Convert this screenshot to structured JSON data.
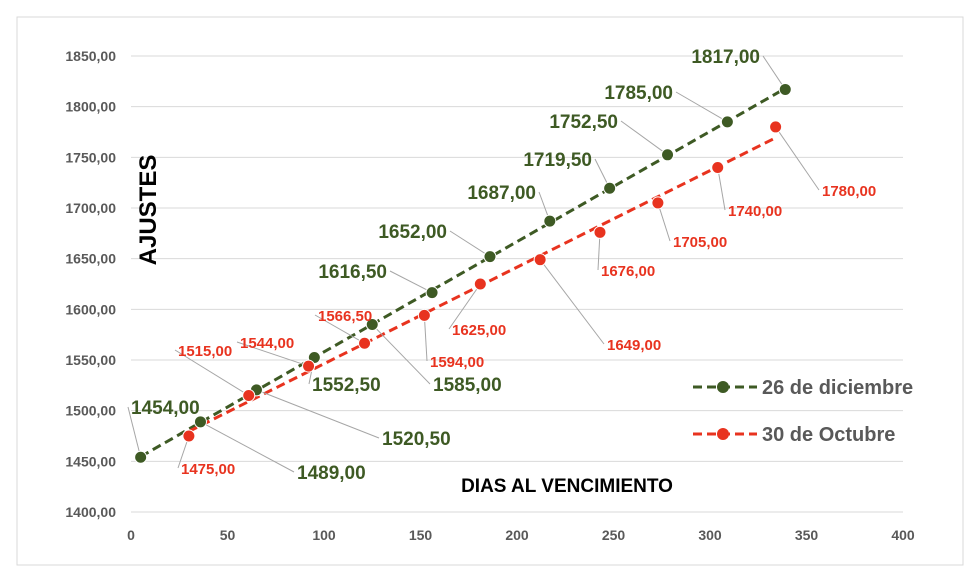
{
  "chart_data": {
    "type": "scatter",
    "xlabel": "DIAS AL VENCIMIENTO",
    "ylabel": "AJUSTES",
    "xlim": [
      0,
      400
    ],
    "ylim": [
      1400,
      1850
    ],
    "xticks": [
      "0",
      "50",
      "100",
      "150",
      "200",
      "250",
      "300",
      "350",
      "400"
    ],
    "yticks": [
      "1400,00",
      "1450,00",
      "1500,00",
      "1550,00",
      "1600,00",
      "1650,00",
      "1700,00",
      "1750,00",
      "1800,00",
      "1850,00"
    ],
    "grid": "horizontal",
    "legend": "right",
    "series": [
      {
        "name": "26 de diciembre",
        "color": "#3e5a24",
        "line": "dashed",
        "x": [
          5,
          36,
          65,
          95,
          125,
          156,
          186,
          217,
          248,
          278,
          309,
          339
        ],
        "y": [
          1454,
          1489,
          1520.5,
          1552.5,
          1585,
          1616.5,
          1652,
          1687,
          1719.5,
          1752.5,
          1785,
          1817
        ],
        "labels": [
          "1454,00",
          "1489,00",
          "1520,50",
          "1552,50",
          "1585,00",
          "1616,50",
          "1652,00",
          "1687,00",
          "1719,50",
          "1752,50",
          "1785,00",
          "1817,00"
        ]
      },
      {
        "name": "30 de Octubre",
        "color": "#e8331f",
        "line": "dashed",
        "x": [
          30,
          61,
          92,
          121,
          152,
          181,
          212,
          243,
          273,
          304,
          334
        ],
        "y": [
          1475,
          1515,
          1544,
          1566.5,
          1594,
          1625,
          1649,
          1676,
          1705,
          1740,
          1780
        ],
        "labels": [
          "1475,00",
          "1515,00",
          "1544,00",
          "1566,50",
          "1594,00",
          "1625,00",
          "1649,00",
          "1676,00",
          "1705,00",
          "1740,00",
          "1780,00"
        ]
      }
    ]
  }
}
